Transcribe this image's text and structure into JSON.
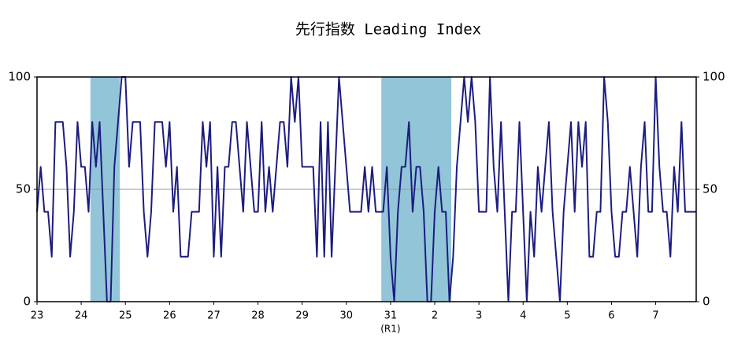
{
  "chart_data": {
    "type": "line",
    "title": "先行指数 Leading Index",
    "categories": [
      "23",
      null,
      null,
      null,
      null,
      null,
      null,
      null,
      null,
      null,
      null,
      null,
      "24",
      null,
      null,
      null,
      null,
      null,
      null,
      null,
      null,
      null,
      null,
      null,
      "25",
      null,
      null,
      null,
      null,
      null,
      null,
      null,
      null,
      null,
      null,
      null,
      "26",
      null,
      null,
      null,
      null,
      null,
      null,
      null,
      null,
      null,
      null,
      null,
      "27",
      null,
      null,
      null,
      null,
      null,
      null,
      null,
      null,
      null,
      null,
      null,
      "28",
      null,
      null,
      null,
      null,
      null,
      null,
      null,
      null,
      null,
      null,
      null,
      "29",
      null,
      null,
      null,
      null,
      null,
      null,
      null,
      null,
      null,
      null,
      null,
      "30",
      null,
      null,
      null,
      null,
      null,
      null,
      null,
      null,
      null,
      null,
      null,
      "31",
      null,
      null,
      null,
      null,
      null,
      null,
      null,
      null,
      null,
      null,
      null,
      "2",
      null,
      null,
      null,
      null,
      null,
      null,
      null,
      null,
      null,
      null,
      null,
      "3",
      null,
      null,
      null,
      null,
      null,
      null,
      null,
      null,
      null,
      null,
      null,
      "4",
      null,
      null,
      null,
      null,
      null,
      null,
      null,
      null,
      null,
      null,
      null,
      "5",
      null,
      null,
      null,
      null,
      null,
      null,
      null,
      null,
      null,
      null,
      null,
      "6",
      null,
      null,
      null,
      null,
      null,
      null,
      null,
      null,
      null,
      null,
      null,
      "7",
      null,
      null,
      null,
      null,
      null,
      null,
      null,
      null,
      null,
      null,
      null
    ],
    "annotations": [
      {
        "text": "(R1)",
        "category": 96
      }
    ],
    "series": [
      {
        "name": "先行指数",
        "color": "#1c1c80",
        "values": [
          40,
          60,
          40,
          40,
          20,
          80,
          80,
          80,
          60,
          20,
          40,
          80,
          60,
          60,
          40,
          80,
          60,
          80,
          40,
          0,
          0,
          60,
          80,
          100,
          100,
          60,
          80,
          80,
          80,
          40,
          20,
          40,
          80,
          80,
          80,
          60,
          80,
          40,
          60,
          20,
          20,
          20,
          40,
          40,
          40,
          80,
          60,
          80,
          20,
          60,
          20,
          60,
          60,
          80,
          80,
          60,
          40,
          80,
          60,
          40,
          40,
          80,
          40,
          60,
          40,
          60,
          80,
          80,
          60,
          100,
          80,
          100,
          60,
          60,
          60,
          60,
          20,
          80,
          20,
          80,
          20,
          60,
          100,
          80,
          60,
          40,
          40,
          40,
          40,
          60,
          40,
          60,
          40,
          40,
          40,
          60,
          20,
          0,
          40,
          60,
          60,
          80,
          40,
          60,
          60,
          40,
          0,
          0,
          40,
          60,
          40,
          40,
          0,
          20,
          60,
          80,
          100,
          80,
          100,
          80,
          40,
          40,
          40,
          100,
          60,
          40,
          80,
          40,
          0,
          40,
          40,
          80,
          40,
          0,
          40,
          20,
          60,
          40,
          60,
          80,
          40,
          20,
          0,
          40,
          60,
          80,
          40,
          80,
          60,
          80,
          20,
          20,
          40,
          40,
          100,
          80,
          40,
          20,
          20,
          40,
          40,
          60,
          40,
          20,
          60,
          80,
          40,
          40,
          100,
          60,
          40,
          40,
          20,
          60,
          40,
          80,
          40,
          40,
          40,
          40
        ]
      }
    ],
    "shaded_periods": [
      [
        14.5,
        22.5
      ],
      [
        93.5,
        112.5
      ]
    ],
    "shade_color": "#92c5d8",
    "ylim": [
      0,
      100
    ],
    "yticks": [
      0,
      50,
      100
    ],
    "y2lim": [
      0,
      100
    ],
    "y2ticks": [
      0,
      50,
      100
    ],
    "grid": true
  }
}
